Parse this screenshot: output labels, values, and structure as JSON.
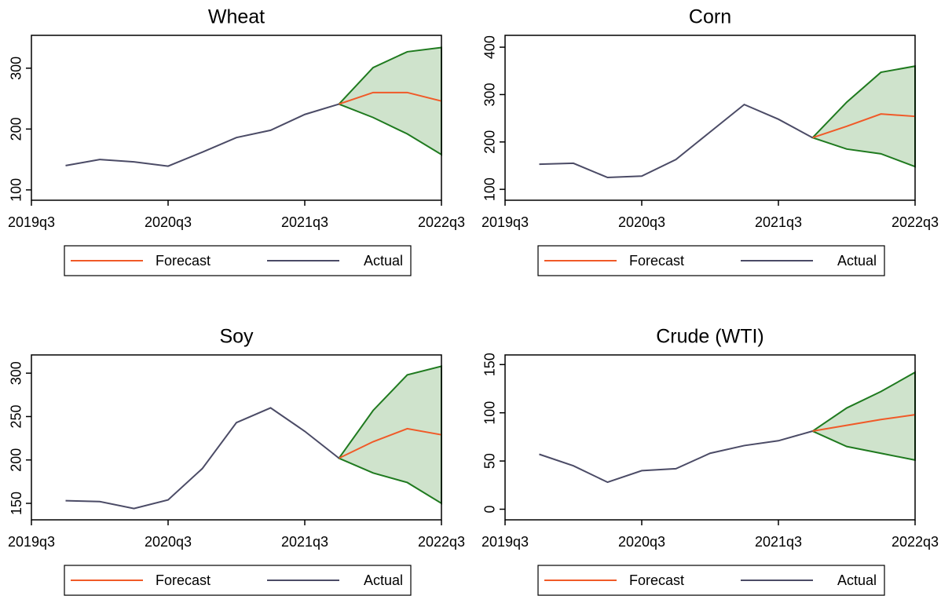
{
  "chart_data": [
    {
      "type": "line",
      "title": "Wheat",
      "x": [
        "2019q4",
        "2020q1",
        "2020q2",
        "2020q3",
        "2020q4",
        "2021q1",
        "2021q2",
        "2021q3",
        "2021q4",
        "2022q1",
        "2022q2",
        "2022q3"
      ],
      "xlim": [
        "2019q3",
        "2022q3"
      ],
      "xticks": [
        "2019q3",
        "2020q3",
        "2021q3",
        "2022q3"
      ],
      "ylim": [
        83,
        354
      ],
      "yticks": [
        100,
        200,
        300
      ],
      "series": [
        {
          "name": "Forecast",
          "color": "#f05a28",
          "values": [
            null,
            null,
            null,
            null,
            null,
            null,
            null,
            null,
            241,
            260,
            260,
            246
          ]
        },
        {
          "name": "Actual",
          "color": "#4b4b66",
          "values": [
            140,
            150,
            146,
            139,
            162,
            186,
            198,
            224,
            241,
            null,
            null,
            null
          ]
        }
      ],
      "band": {
        "color": "#1f7a1f",
        "fill": "#cfe3cc",
        "upper": [
          null,
          null,
          null,
          null,
          null,
          null,
          null,
          null,
          241,
          301,
          327,
          334
        ],
        "lower": [
          null,
          null,
          null,
          null,
          null,
          null,
          null,
          null,
          241,
          219,
          192,
          158
        ]
      }
    },
    {
      "type": "line",
      "title": "Corn",
      "x": [
        "2019q4",
        "2020q1",
        "2020q2",
        "2020q3",
        "2020q4",
        "2021q1",
        "2021q2",
        "2021q3",
        "2021q4",
        "2022q1",
        "2022q2",
        "2022q3"
      ],
      "xlim": [
        "2019q3",
        "2022q3"
      ],
      "xticks": [
        "2019q3",
        "2020q3",
        "2021q3",
        "2022q3"
      ],
      "ylim": [
        77,
        425
      ],
      "yticks": [
        100,
        200,
        300,
        400
      ],
      "series": [
        {
          "name": "Forecast",
          "color": "#f05a28",
          "values": [
            null,
            null,
            null,
            null,
            null,
            null,
            null,
            null,
            209,
            233,
            259,
            254
          ]
        },
        {
          "name": "Actual",
          "color": "#4b4b66",
          "values": [
            153,
            155,
            125,
            128,
            163,
            221,
            279,
            248,
            209,
            null,
            null,
            null
          ]
        }
      ],
      "band": {
        "color": "#1f7a1f",
        "fill": "#cfe3cc",
        "upper": [
          null,
          null,
          null,
          null,
          null,
          null,
          null,
          null,
          209,
          284,
          347,
          360
        ],
        "lower": [
          null,
          null,
          null,
          null,
          null,
          null,
          null,
          null,
          209,
          185,
          175,
          148
        ]
      }
    },
    {
      "type": "line",
      "title": "Soy",
      "x": [
        "2019q4",
        "2020q1",
        "2020q2",
        "2020q3",
        "2020q4",
        "2021q1",
        "2021q2",
        "2021q3",
        "2021q4",
        "2022q1",
        "2022q2",
        "2022q3"
      ],
      "xlim": [
        "2019q3",
        "2022q3"
      ],
      "xticks": [
        "2019q3",
        "2020q3",
        "2021q3",
        "2022q3"
      ],
      "ylim": [
        131,
        321
      ],
      "yticks": [
        150,
        200,
        250,
        300
      ],
      "series": [
        {
          "name": "Forecast",
          "color": "#f05a28",
          "values": [
            null,
            null,
            null,
            null,
            null,
            null,
            null,
            null,
            202,
            221,
            236,
            229
          ]
        },
        {
          "name": "Actual",
          "color": "#4b4b66",
          "values": [
            153,
            152,
            144,
            154,
            190,
            243,
            260,
            233,
            202,
            null,
            null,
            null
          ]
        }
      ],
      "band": {
        "color": "#1f7a1f",
        "fill": "#cfe3cc",
        "upper": [
          null,
          null,
          null,
          null,
          null,
          null,
          null,
          null,
          202,
          257,
          298,
          308
        ],
        "lower": [
          null,
          null,
          null,
          null,
          null,
          null,
          null,
          null,
          202,
          185,
          174,
          150
        ]
      }
    },
    {
      "type": "line",
      "title": "Crude (WTI)",
      "x": [
        "2019q4",
        "2020q1",
        "2020q2",
        "2020q3",
        "2020q4",
        "2021q1",
        "2021q2",
        "2021q3",
        "2021q4",
        "2022q1",
        "2022q2",
        "2022q3"
      ],
      "xlim": [
        "2019q3",
        "2022q3"
      ],
      "xticks": [
        "2019q3",
        "2020q3",
        "2021q3",
        "2022q3"
      ],
      "ylim": [
        -11,
        160
      ],
      "yticks": [
        0,
        50,
        100,
        150
      ],
      "series": [
        {
          "name": "Forecast",
          "color": "#f05a28",
          "values": [
            null,
            null,
            null,
            null,
            null,
            null,
            null,
            null,
            81,
            87,
            93,
            98
          ]
        },
        {
          "name": "Actual",
          "color": "#4b4b66",
          "values": [
            57,
            45,
            28,
            40,
            42,
            58,
            66,
            71,
            81,
            null,
            null,
            null
          ]
        }
      ],
      "band": {
        "color": "#1f7a1f",
        "fill": "#cfe3cc",
        "upper": [
          null,
          null,
          null,
          null,
          null,
          null,
          null,
          null,
          81,
          105,
          122,
          142
        ],
        "lower": [
          null,
          null,
          null,
          null,
          null,
          null,
          null,
          null,
          81,
          65,
          58,
          51
        ]
      }
    }
  ]
}
